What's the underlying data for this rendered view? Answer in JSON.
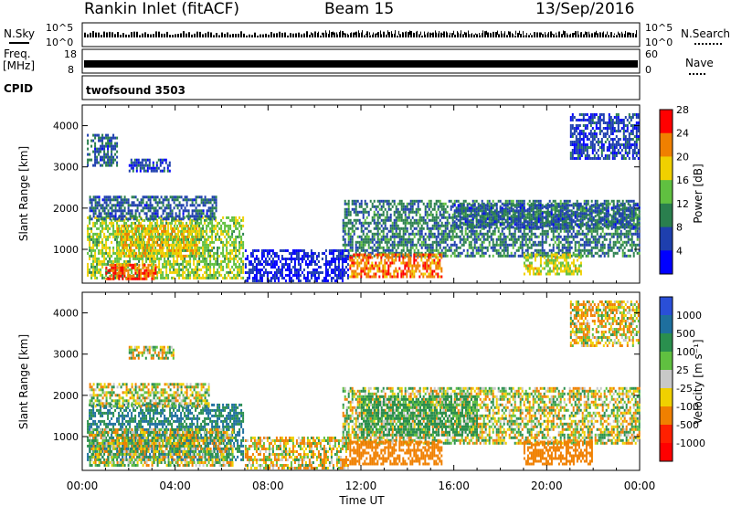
{
  "header": {
    "site": "Rankin Inlet (fitACF)",
    "beam": "Beam 15",
    "date": "13/Sep/2016"
  },
  "strips": {
    "nsky": {
      "label": "N.Sky",
      "ytick_top": "10^5",
      "ytick_bottom": "10^0"
    },
    "nsearch": {
      "label": "N.Search",
      "ytick_top": "10^5",
      "ytick_bottom": "10^0"
    },
    "freq": {
      "label": "Freq.",
      "unit": "[MHz]",
      "ytick_top": "18",
      "ytick_bottom": "8"
    },
    "nave": {
      "label": "Nave",
      "ytick_top": "60",
      "ytick_bottom": "0"
    },
    "cpid": {
      "label": "CPID",
      "value": "twofsound 3503"
    }
  },
  "chart_data": [
    {
      "type": "heatmap",
      "panel": "power",
      "ylabel": "Slant Range [km]",
      "xlabel": "Time UT",
      "ylim": [
        180,
        4500
      ],
      "xlim": [
        0,
        24
      ],
      "yticks": [
        "1000",
        "2000",
        "3000",
        "4000"
      ],
      "xticks": [
        "00:00",
        "04:00",
        "08:00",
        "12:00",
        "16:00",
        "20:00",
        "00:00"
      ],
      "colorbar": {
        "label": "Power [dB]",
        "ticks": [
          "4",
          "8",
          "12",
          "16",
          "20",
          "24",
          "28"
        ],
        "colors": [
          "#0000ff",
          "#1e3fae",
          "#2a7f4e",
          "#60c040",
          "#f0d000",
          "#f08000",
          "#ff0000"
        ]
      },
      "regions": [
        {
          "t0": 0.2,
          "t1": 7.0,
          "r0": 300,
          "r1": 1800,
          "value": 18
        },
        {
          "t0": 1.0,
          "t1": 3.2,
          "r0": 250,
          "r1": 650,
          "value": 28
        },
        {
          "t0": 1.5,
          "t1": 5.0,
          "r0": 800,
          "r1": 1600,
          "value": 22
        },
        {
          "t0": 0.3,
          "t1": 5.8,
          "r0": 1700,
          "r1": 2300,
          "value": 10
        },
        {
          "t0": 2.0,
          "t1": 3.8,
          "r0": 2900,
          "r1": 3200,
          "value": 8
        },
        {
          "t0": 0.2,
          "t1": 1.5,
          "r0": 3000,
          "r1": 3800,
          "value": 10
        },
        {
          "t0": 11.2,
          "t1": 24.0,
          "r0": 800,
          "r1": 2200,
          "value": 12
        },
        {
          "t0": 11.5,
          "t1": 15.5,
          "r0": 300,
          "r1": 900,
          "value": 26
        },
        {
          "t0": 16.0,
          "t1": 24.0,
          "r0": 1500,
          "r1": 2100,
          "value": 10
        },
        {
          "t0": 19.0,
          "t1": 21.5,
          "r0": 400,
          "r1": 900,
          "value": 20
        },
        {
          "t0": 21.0,
          "t1": 24.0,
          "r0": 3200,
          "r1": 4300,
          "value": 8
        },
        {
          "t0": 7.0,
          "t1": 11.5,
          "r0": 200,
          "r1": 1000,
          "value": 6
        }
      ]
    },
    {
      "type": "heatmap",
      "panel": "velocity",
      "ylabel": "Slant Range [km]",
      "xlabel": "Time UT",
      "ylim": [
        180,
        4500
      ],
      "xlim": [
        0,
        24
      ],
      "yticks": [
        "1000",
        "2000",
        "3000",
        "4000"
      ],
      "xticks": [
        "00:00",
        "04:00",
        "08:00",
        "12:00",
        "16:00",
        "20:00",
        "00:00"
      ],
      "colorbar": {
        "label": "Velocity [m s⁻¹]",
        "ticks": [
          "1000",
          "500",
          "100",
          "25",
          "-25",
          "-100",
          "-500",
          "-1000"
        ],
        "colors": [
          "#2a4fd8",
          "#1e6f9e",
          "#2a8f4e",
          "#60c040",
          "#c8c8c8",
          "#f0d000",
          "#f08000",
          "#ff2000",
          "#ff0000"
        ]
      },
      "regions": [
        {
          "t0": 0.2,
          "t1": 7.0,
          "r0": 400,
          "r1": 1800,
          "value": 500
        },
        {
          "t0": 0.3,
          "t1": 6.5,
          "r0": 250,
          "r1": 1200,
          "value": 0
        },
        {
          "t0": 0.3,
          "t1": 5.5,
          "r0": 1700,
          "r1": 2300,
          "value": 0
        },
        {
          "t0": 2.0,
          "t1": 4.0,
          "r0": 2900,
          "r1": 3200,
          "value": 0
        },
        {
          "t0": 11.2,
          "t1": 24.0,
          "r0": 800,
          "r1": 2200,
          "value": 0
        },
        {
          "t0": 11.5,
          "t1": 15.5,
          "r0": 300,
          "r1": 900,
          "value": -300
        },
        {
          "t0": 12.0,
          "t1": 17.0,
          "r0": 1000,
          "r1": 2000,
          "value": 200
        },
        {
          "t0": 19.0,
          "t1": 22.0,
          "r0": 300,
          "r1": 900,
          "value": -300
        },
        {
          "t0": 21.0,
          "t1": 24.0,
          "r0": 3200,
          "r1": 4300,
          "value": -60
        },
        {
          "t0": 7.0,
          "t1": 11.5,
          "r0": 200,
          "r1": 1000,
          "value": -60
        }
      ]
    }
  ]
}
